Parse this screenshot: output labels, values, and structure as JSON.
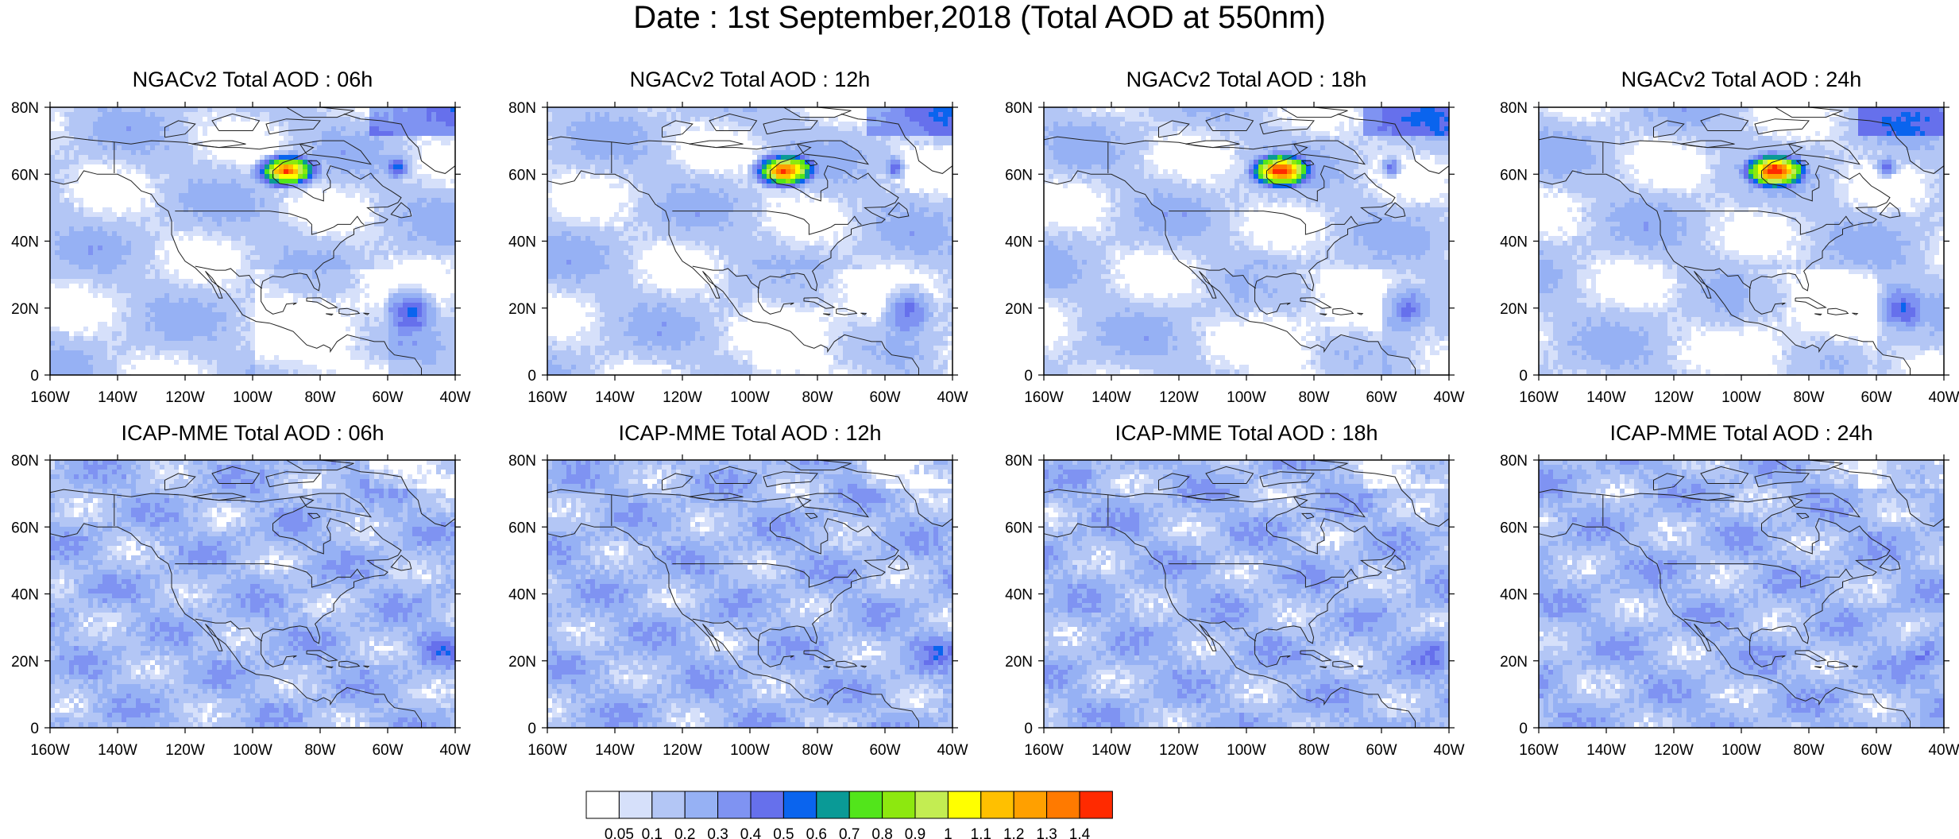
{
  "title": "Date : 1st September,2018 (Total AOD at 550nm)",
  "panels": [
    {
      "title": "NGACv2 Total AOD : 06h",
      "model": "NGACv2",
      "hour": "06h"
    },
    {
      "title": "NGACv2 Total AOD : 12h",
      "model": "NGACv2",
      "hour": "12h"
    },
    {
      "title": "NGACv2 Total AOD : 18h",
      "model": "NGACv2",
      "hour": "18h"
    },
    {
      "title": "NGACv2 Total AOD : 24h",
      "model": "NGACv2",
      "hour": "24h"
    },
    {
      "title": "ICAP-MME Total AOD : 06h",
      "model": "ICAP-MME",
      "hour": "06h"
    },
    {
      "title": "ICAP-MME Total AOD : 12h",
      "model": "ICAP-MME",
      "hour": "12h"
    },
    {
      "title": "ICAP-MME Total AOD : 18h",
      "model": "ICAP-MME",
      "hour": "18h"
    },
    {
      "title": "ICAP-MME Total AOD : 24h",
      "model": "ICAP-MME",
      "hour": "24h"
    }
  ],
  "axes": {
    "x_ticks": [
      "160W",
      "140W",
      "120W",
      "100W",
      "80W",
      "60W",
      "40W"
    ],
    "x_values": [
      -160,
      -140,
      -120,
      -100,
      -80,
      -60,
      -40
    ],
    "y_ticks": [
      "0",
      "20N",
      "40N",
      "60N",
      "80N"
    ],
    "y_values": [
      0,
      20,
      40,
      60,
      80
    ],
    "lon_range": [
      -160,
      -40
    ],
    "lat_range": [
      0,
      80
    ]
  },
  "colorbar": {
    "labels": [
      "0.05",
      "0.1",
      "0.2",
      "0.3",
      "0.4",
      "0.5",
      "0.6",
      "0.7",
      "0.8",
      "0.9",
      "1",
      "1.1",
      "1.2",
      "1.3",
      "1.4"
    ],
    "colors": [
      "#ffffff",
      "#d6e0fa",
      "#b3c6f5",
      "#96b1f4",
      "#7f93f2",
      "#6670ec",
      "#0a64ee",
      "#0a9a96",
      "#52e51b",
      "#8de80f",
      "#c3ed52",
      "#ffff00",
      "#ffc000",
      "#ffa000",
      "#ff7a00",
      "#ff2a00"
    ]
  },
  "colors": {
    "land_outline": "#222222",
    "background_low": "#d6e0fa"
  }
}
